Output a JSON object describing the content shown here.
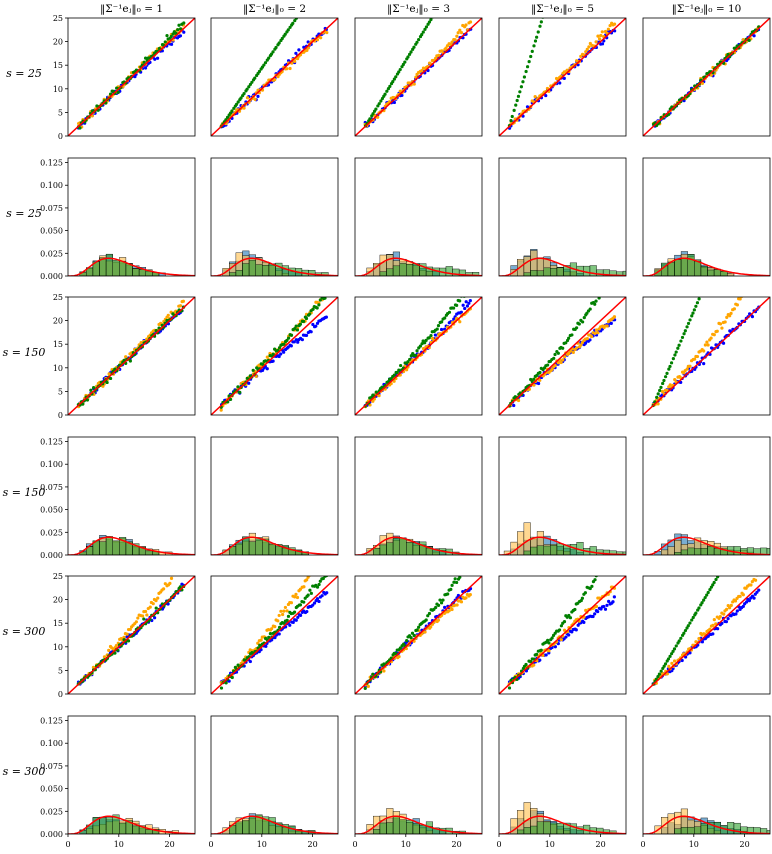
{
  "figure": {
    "column_titles": [
      "‖Σ⁻¹eⱼ‖₀ = 1",
      "‖Σ⁻¹eⱼ‖₀ = 2",
      "‖Σ⁻¹eⱼ‖₀ = 3",
      "‖Σ⁻¹eⱼ‖₀ = 5",
      "‖Σ⁻¹eⱼ‖₀ = 10"
    ],
    "row_labels": [
      "s = 25",
      "s = 25",
      "s = 150",
      "s = 150",
      "s = 300",
      "s = 300"
    ],
    "row_kinds": [
      "qq",
      "hist",
      "qq",
      "hist",
      "qq",
      "hist"
    ],
    "colors": {
      "blue": "#0000ff",
      "orange": "#ffa500",
      "green": "#008000",
      "hist_blue": "#1f77b4",
      "hist_orange": "#ffbe4a",
      "hist_green": "#2ca02c",
      "reference": "#ff0000"
    }
  },
  "chart_data": {
    "type": "small-multiples",
    "qq_axes": {
      "xlim": [
        0,
        25
      ],
      "ylim": [
        0,
        25
      ],
      "yticks": [
        "0",
        "5",
        "10",
        "15",
        "20",
        "25"
      ],
      "reference_line": "y = x"
    },
    "hist_axes": {
      "xlim": [
        0,
        25
      ],
      "ylim": [
        0,
        0.13
      ],
      "xticks": [
        "0",
        "10",
        "20"
      ],
      "yticks": [
        "0.000",
        "0.025",
        "0.050",
        "0.075",
        "0.100",
        "0.125"
      ],
      "density_curve": "chi-square, 10 degrees of freedom"
    },
    "qq_deviation": [
      [
        {
          "blue": 0.98,
          "orange": 1.02,
          "green": 1.04
        },
        {
          "blue": 1.0,
          "orange": 0.98,
          "green": 1.55
        },
        {
          "blue": 1.0,
          "orange": 1.05,
          "green": 1.75
        },
        {
          "blue": 1.0,
          "orange": 1.05,
          "green": 3.5
        },
        {
          "blue": 1.0,
          "orange": 1.0,
          "green": 1.0
        }
      ],
      [
        {
          "blue": 1.0,
          "orange": 1.05,
          "green": 1.0
        },
        {
          "blue": 0.92,
          "orange": 1.12,
          "green": 1.1
        },
        {
          "blue": 1.05,
          "orange": 1.0,
          "green": 1.18
        },
        {
          "blue": 0.9,
          "orange": 0.92,
          "green": 1.28
        },
        {
          "blue": 1.0,
          "orange": 1.3,
          "green": 2.5
        }
      ],
      [
        {
          "blue": 1.0,
          "orange": 1.2,
          "green": 1.0
        },
        {
          "blue": 0.95,
          "orange": 1.3,
          "green": 1.1
        },
        {
          "blue": 1.0,
          "orange": 0.95,
          "green": 1.2
        },
        {
          "blue": 0.9,
          "orange": 1.0,
          "green": 1.3
        },
        {
          "blue": 0.95,
          "orange": 1.1,
          "green": 1.8
        }
      ]
    ],
    "hist_shift": [
      [
        {
          "blue": 10,
          "orange": 10,
          "green": 10
        },
        {
          "blue": 9,
          "orange": 8,
          "green": 13
        },
        {
          "blue": 9,
          "orange": 8,
          "green": 15
        },
        {
          "blue": 8,
          "orange": 8,
          "green": 17
        },
        {
          "blue": 9,
          "orange": 9,
          "green": 9
        }
      ],
      [
        {
          "blue": 10,
          "orange": 11,
          "green": 10
        },
        {
          "blue": 10,
          "orange": 10,
          "green": 11
        },
        {
          "blue": 10,
          "orange": 9,
          "green": 12
        },
        {
          "blue": 9,
          "orange": 7,
          "green": 15
        },
        {
          "blue": 10,
          "orange": 12,
          "green": 20
        }
      ],
      [
        {
          "blue": 10,
          "orange": 12,
          "green": 10
        },
        {
          "blue": 11,
          "orange": 9,
          "green": 11
        },
        {
          "blue": 10,
          "orange": 8,
          "green": 12
        },
        {
          "blue": 9,
          "orange": 7,
          "green": 13
        },
        {
          "blue": 12,
          "orange": 8,
          "green": 18
        }
      ]
    ]
  }
}
